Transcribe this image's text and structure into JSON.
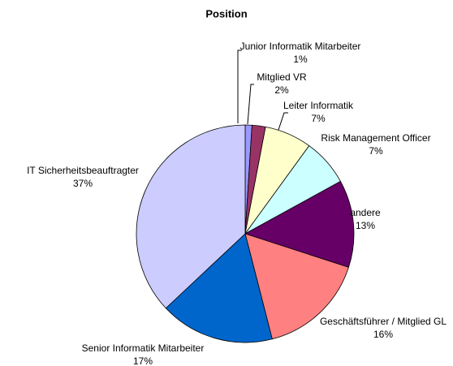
{
  "chart_data": {
    "type": "pie",
    "title": "Position",
    "categories": [
      "Junior Informatik Mitarbeiter",
      "Mitglied VR",
      "Leiter Informatik",
      "Risk Management Officer",
      "andere",
      "Geschäftsführer / Mitglied GL",
      "Senior Informatik Mitarbeiter",
      "IT Sicherheitsbeauftragter"
    ],
    "values": [
      1,
      2,
      7,
      7,
      13,
      16,
      17,
      37
    ],
    "value_labels": [
      "1%",
      "2%",
      "7%",
      "7%",
      "13%",
      "16%",
      "17%",
      "37%"
    ],
    "colors": [
      "#9999ff",
      "#993366",
      "#ffffcc",
      "#ccffff",
      "#660066",
      "#ff8080",
      "#0066cc",
      "#ccccff"
    ]
  }
}
